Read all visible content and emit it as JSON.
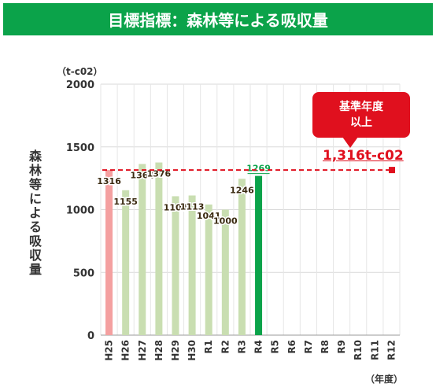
{
  "header": {
    "title": "目標指標：森林等による吸収量"
  },
  "ylabel": "森林等による吸収量",
  "unit_label": "（t-c02）",
  "x_unit_label": "（年度）",
  "callout": {
    "line1": "基準年度",
    "line2": "以上"
  },
  "baseline_text": "1,316t-c02",
  "colors": {
    "header": "#0ba34a",
    "base_bar": "#f4a0a0",
    "normal_bar": "#c9deb1",
    "current_bar": "#0ba34a",
    "target": "#e0101e",
    "label_text": "#3a2a10",
    "current_label": "#0ba34a"
  },
  "chart_data": {
    "type": "bar",
    "categories": [
      "H25",
      "H26",
      "H27",
      "H28",
      "H29",
      "H30",
      "R1",
      "R2",
      "R3",
      "R4",
      "R5",
      "R6",
      "R7",
      "R8",
      "R9",
      "R10",
      "R11",
      "R12"
    ],
    "values": [
      1316,
      1155,
      1364,
      1376,
      1107,
      1113,
      1041,
      1000,
      1246,
      1269,
      null,
      null,
      null,
      null,
      null,
      null,
      null,
      null
    ],
    "value_labels": [
      "1316",
      "1155",
      "1364",
      "1376",
      "1107",
      "1113",
      "1041",
      "1000",
      "1246",
      "1269",
      "",
      "",
      "",
      "",
      "",
      "",
      "",
      ""
    ],
    "ylim": [
      0,
      2000
    ],
    "yticks": [
      "0",
      "500",
      "1000",
      "1500",
      "2000"
    ],
    "target_line": 1316,
    "grid": true
  }
}
